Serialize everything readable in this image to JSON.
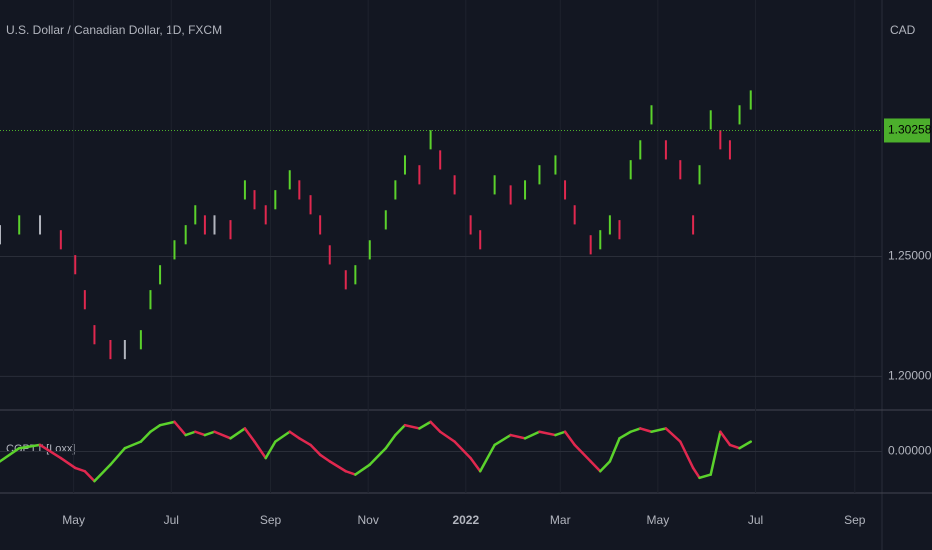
{
  "chart_data": [
    {
      "type": "ohlc",
      "title": "U.S. Dollar / Canadian Dollar, 1D, FXCM",
      "y_axis_label": "CAD",
      "x": [
        -16,
        -4,
        9,
        22,
        31,
        37,
        43,
        53,
        62,
        72,
        78,
        84,
        93,
        100,
        106,
        112,
        118,
        128,
        137,
        143,
        150,
        156,
        165,
        171,
        178,
        184,
        190,
        200,
        206,
        215,
        225,
        231,
        237,
        246,
        253,
        259,
        268,
        278,
        284,
        293,
        303,
        312,
        321,
        331,
        337,
        343,
        353,
        359,
        365,
        371,
        378,
        384,
        391,
        400,
        409,
        417,
        421,
        428,
        434,
        440,
        446,
        453
      ],
      "high": [
        1.2631,
        1.2672,
        1.2672,
        1.261,
        1.2506,
        1.236,
        1.2214,
        1.2152,
        1.2152,
        1.2193,
        1.236,
        1.2464,
        1.2568,
        1.2631,
        1.2714,
        1.2672,
        1.2672,
        1.2652,
        1.2818,
        1.2777,
        1.2714,
        1.2777,
        1.286,
        1.2818,
        1.2756,
        1.2672,
        1.2547,
        1.2443,
        1.2464,
        1.2568,
        1.2693,
        1.2818,
        1.2922,
        1.2881,
        1.3027,
        1.2943,
        1.2839,
        1.2672,
        1.261,
        1.2839,
        1.2797,
        1.2818,
        1.2881,
        1.2922,
        1.2818,
        1.2714,
        1.2589,
        1.261,
        1.2672,
        1.2652,
        1.2902,
        1.2985,
        1.3131,
        1.2985,
        1.2902,
        1.2672,
        1.2881,
        1.311,
        1.3027,
        1.2985,
        1.3131,
        1.3193
      ],
      "low": [
        1.2551,
        1.2592,
        1.2592,
        1.253,
        1.2426,
        1.228,
        1.2134,
        1.2072,
        1.2072,
        1.2113,
        1.228,
        1.2384,
        1.2488,
        1.2551,
        1.2634,
        1.2592,
        1.2592,
        1.2572,
        1.2738,
        1.2697,
        1.2634,
        1.2697,
        1.278,
        1.2738,
        1.2676,
        1.2592,
        1.2467,
        1.2363,
        1.2384,
        1.2488,
        1.2613,
        1.2738,
        1.2842,
        1.2801,
        1.2947,
        1.2863,
        1.2759,
        1.2592,
        1.253,
        1.2759,
        1.2717,
        1.2738,
        1.2801,
        1.2842,
        1.2738,
        1.2634,
        1.2509,
        1.253,
        1.2592,
        1.2572,
        1.2822,
        1.2905,
        1.3051,
        1.2905,
        1.2822,
        1.2592,
        1.2801,
        1.303,
        1.2947,
        1.2905,
        1.3051,
        1.3113
      ],
      "up_color": "#5bd22c",
      "down_color": "#e0284f",
      "flat_color": "#b2b5be",
      "xlim": [
        -16,
        535
      ],
      "xticks": [
        {
          "value": 30,
          "label": "May"
        },
        {
          "value": 91,
          "label": "Jul"
        },
        {
          "value": 153,
          "label": "Sep"
        },
        {
          "value": 214,
          "label": "Nov"
        },
        {
          "value": 275,
          "label": "2022"
        },
        {
          "value": 334,
          "label": "Mar"
        },
        {
          "value": 395,
          "label": "May"
        },
        {
          "value": 456,
          "label": "Jul"
        },
        {
          "value": 518,
          "label": "Sep"
        }
      ],
      "ylim": [
        1.186,
        1.357
      ],
      "yticks": [
        {
          "value": 1.2,
          "label": "1.20000"
        },
        {
          "value": 1.25,
          "label": "1.25000"
        }
      ],
      "last_price": {
        "value": 1.30258,
        "label": "1.30258"
      },
      "last_price_color": "#4caf2c",
      "grid": true
    },
    {
      "type": "line",
      "title": "CGPTT [Loxx]",
      "x": [
        -16,
        -4,
        9,
        22,
        31,
        37,
        43,
        53,
        62,
        72,
        78,
        84,
        93,
        100,
        106,
        112,
        118,
        128,
        137,
        143,
        150,
        156,
        165,
        171,
        178,
        184,
        190,
        200,
        206,
        215,
        225,
        231,
        237,
        246,
        253,
        259,
        268,
        278,
        284,
        293,
        303,
        312,
        321,
        331,
        337,
        343,
        353,
        359,
        365,
        371,
        378,
        384,
        391,
        400,
        409,
        417,
        421,
        428,
        434,
        440,
        446,
        453
      ],
      "values": [
        -0.3,
        0.1,
        0.2,
        -0.2,
        -0.5,
        -0.6,
        -0.9,
        -0.4,
        0.1,
        0.3,
        0.6,
        0.8,
        0.9,
        0.5,
        0.6,
        0.5,
        0.6,
        0.4,
        0.7,
        0.3,
        -0.2,
        0.3,
        0.6,
        0.4,
        0.2,
        -0.1,
        -0.3,
        -0.6,
        -0.7,
        -0.4,
        0.1,
        0.5,
        0.8,
        0.7,
        0.9,
        0.6,
        0.3,
        -0.2,
        -0.6,
        0.2,
        0.5,
        0.4,
        0.6,
        0.5,
        0.6,
        0.2,
        -0.3,
        -0.6,
        -0.3,
        0.4,
        0.6,
        0.7,
        0.6,
        0.7,
        0.3,
        -0.5,
        -0.8,
        -0.7,
        0.6,
        0.2,
        0.1,
        0.3
      ],
      "up_color": "#5bd22c",
      "down_color": "#e0284f",
      "xlim": [
        -16,
        535
      ],
      "ylim": [
        -1.2,
        1.2
      ],
      "yticks": [
        {
          "value": 0,
          "label": "0.00000"
        }
      ]
    }
  ]
}
